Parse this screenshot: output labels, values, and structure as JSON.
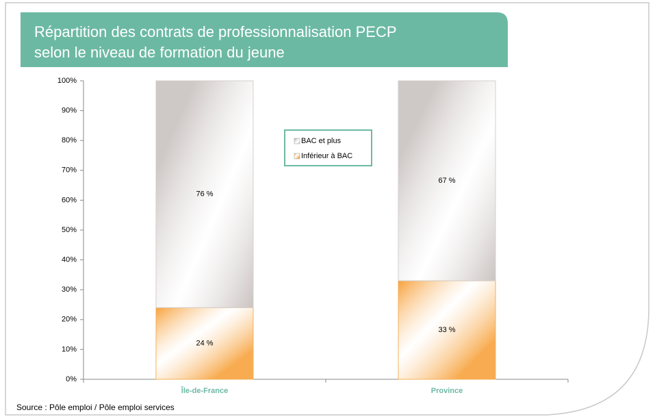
{
  "chart_data": {
    "type": "stacked_bar",
    "title": [
      "Répartition des contrats de professionnalisation PECP",
      "selon le niveau de formation du jeune"
    ],
    "categories": [
      "Île-de-France",
      "Province"
    ],
    "series": [
      {
        "name": "Inférieur à BAC",
        "color": "#f7a23c",
        "values": [
          24,
          33
        ],
        "value_labels": [
          "24 %",
          "33 %"
        ]
      },
      {
        "name": "BAC et plus",
        "color": "#c9c2c0",
        "values": [
          76,
          67
        ],
        "value_labels": [
          "76 %",
          "67 %"
        ]
      }
    ],
    "ylim": [
      0,
      100
    ],
    "yticks": [
      {
        "value": 0,
        "label": "0%"
      },
      {
        "value": 10,
        "label": "10%"
      },
      {
        "value": 20,
        "label": "20%"
      },
      {
        "value": 30,
        "label": "30%"
      },
      {
        "value": 40,
        "label": "40%"
      },
      {
        "value": 50,
        "label": "50%"
      },
      {
        "value": 60,
        "label": "60%"
      },
      {
        "value": 70,
        "label": "70%"
      },
      {
        "value": 80,
        "label": "80%"
      },
      {
        "value": 90,
        "label": "90%"
      },
      {
        "value": 100,
        "label": "100%"
      }
    ],
    "source": "Source : Pôle emploi / Pôle emploi services"
  }
}
